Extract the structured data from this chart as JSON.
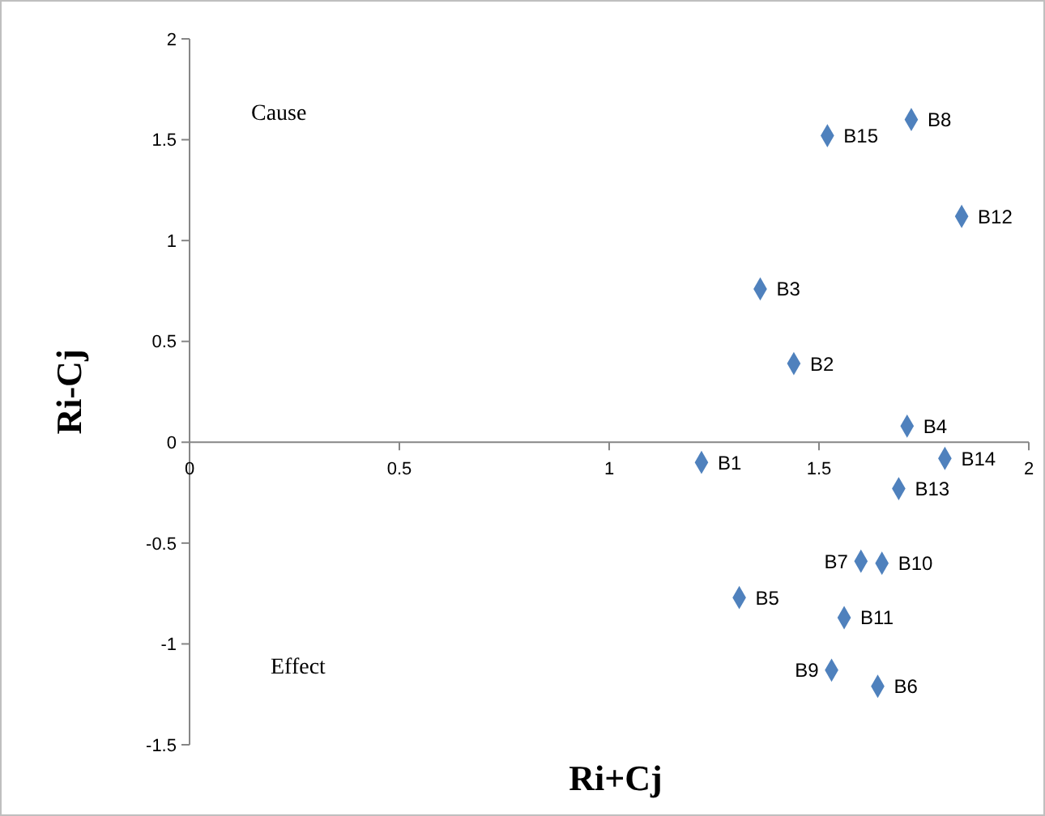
{
  "chart_data": {
    "type": "scatter",
    "xlabel": "Ri+Cj",
    "ylabel": "Ri-Cj",
    "x": [
      1.22,
      1.44,
      1.36,
      1.71,
      1.31,
      1.64,
      1.6,
      1.72,
      1.53,
      1.65,
      1.56,
      1.84,
      1.69,
      1.8,
      1.52
    ],
    "series": [
      {
        "color": "#4f81bd",
        "values": [
          -0.1,
          0.39,
          0.76,
          0.08,
          -0.77,
          -1.21,
          -0.59,
          1.6,
          -1.13,
          -0.6,
          -0.87,
          1.12,
          -0.23,
          -0.08,
          1.52
        ]
      }
    ],
    "xlim": [
      0,
      2
    ],
    "xticks": [
      0,
      0.5,
      1,
      1.5,
      2
    ],
    "ylim": [
      -1.5,
      2
    ],
    "yticks": [
      -1.5,
      -1,
      -0.5,
      0,
      0.5,
      1,
      1.5,
      2
    ],
    "grid": false,
    "marker": "diamond",
    "annotations": [
      "Cause",
      "Effect",
      {
        "text": "B1",
        "x": 1.22,
        "y": -0.1
      },
      {
        "text": "B2",
        "x": 1.44,
        "y": 0.39
      },
      {
        "text": "B3",
        "x": 1.36,
        "y": 0.76
      },
      {
        "text": "B4",
        "x": 1.71,
        "y": 0.08
      },
      {
        "text": "B5",
        "x": 1.31,
        "y": -0.77
      },
      {
        "text": "B6",
        "x": 1.64,
        "y": -1.21
      },
      {
        "text": "B7",
        "x": 1.6,
        "y": -0.59
      },
      {
        "text": "B8",
        "x": 1.72,
        "y": 1.6
      },
      {
        "text": "B9",
        "x": 1.53,
        "y": -1.13
      },
      {
        "text": "B10",
        "x": 1.65,
        "y": -0.6
      },
      {
        "text": "B11",
        "x": 1.56,
        "y": -0.87
      },
      {
        "text": "B12",
        "x": 1.84,
        "y": 1.12
      },
      {
        "text": "B13",
        "x": 1.69,
        "y": -0.23
      },
      {
        "text": "B14",
        "x": 1.8,
        "y": -0.08
      },
      {
        "text": "B15",
        "x": 1.52,
        "y": 1.52
      }
    ]
  }
}
